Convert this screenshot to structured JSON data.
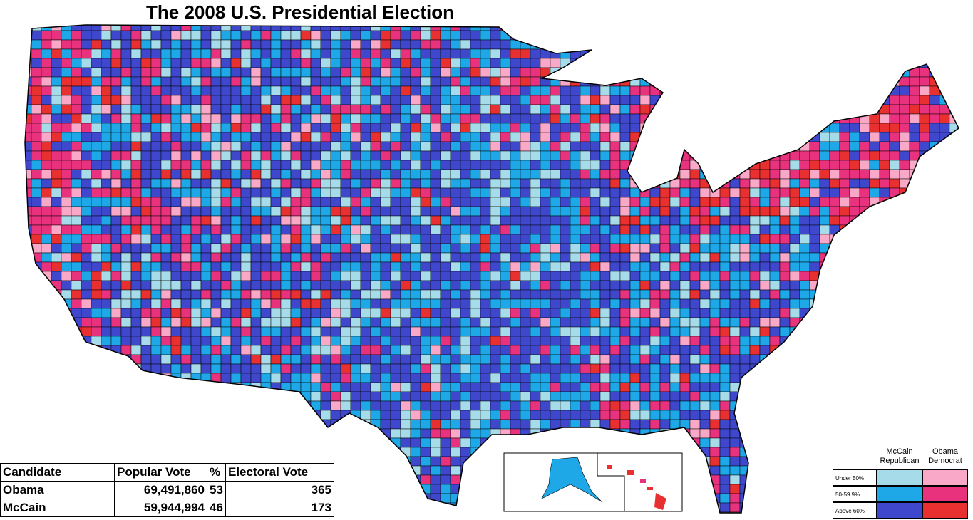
{
  "title": "The 2008 U.S. Presidential Election",
  "table": {
    "header": [
      "Candidate",
      "",
      "Popular Vote",
      "%",
      "Electoral Vote"
    ],
    "rows": [
      [
        "Obama",
        "",
        "69,491,860",
        "53",
        "365"
      ],
      [
        "McCain",
        "",
        "59,944,994",
        "46",
        "173"
      ]
    ]
  },
  "legend": {
    "columns": [
      "McCain Republican",
      "Obama Democrat"
    ],
    "rows": [
      "Under 50%",
      "50-59.9%",
      "Above 60%"
    ]
  }
}
